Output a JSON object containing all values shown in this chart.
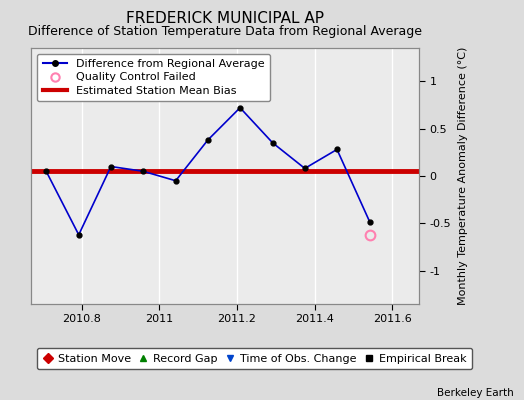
{
  "title": "FREDERICK MUNICIPAL AP",
  "subtitle": "Difference of Station Temperature Data from Regional Average",
  "ylabel_right": "Monthly Temperature Anomaly Difference (°C)",
  "credit": "Berkeley Earth",
  "xlim": [
    2010.67,
    2011.67
  ],
  "ylim": [
    -1.35,
    1.35
  ],
  "yticks": [
    -1,
    -0.5,
    0,
    0.5,
    1
  ],
  "xtick_vals": [
    2010.8,
    2011.0,
    2011.2,
    2011.4,
    2011.6
  ],
  "xtick_labels": [
    "2010.8",
    "2011",
    "2011.2",
    "2011.4",
    "2011.6"
  ],
  "background_color": "#dcdcdc",
  "plot_bg_color": "#ebebeb",
  "grid_color": "#ffffff",
  "main_line_color": "#0000cc",
  "main_marker_color": "#000000",
  "bias_line_color": "#cc0000",
  "bias_value": 0.05,
  "data_x": [
    2010.708,
    2010.792,
    2010.875,
    2010.958,
    2011.042,
    2011.125,
    2011.208,
    2011.292,
    2011.375,
    2011.458,
    2011.542
  ],
  "data_y": [
    0.05,
    -0.62,
    0.1,
    0.05,
    -0.05,
    0.38,
    0.72,
    0.35,
    0.08,
    0.28,
    -0.48
  ],
  "qc_failed_x": [
    2011.542
  ],
  "qc_failed_y": [
    -0.62
  ],
  "legend1_items": [
    {
      "label": "Difference from Regional Average",
      "color": "#0000cc",
      "marker": "o",
      "linestyle": "-"
    },
    {
      "label": "Quality Control Failed",
      "color": "#ff80b0",
      "marker": "o",
      "linestyle": "none"
    },
    {
      "label": "Estimated Station Mean Bias",
      "color": "#cc0000",
      "marker": null,
      "linestyle": "-"
    }
  ],
  "legend2_items": [
    {
      "label": "Station Move",
      "color": "#cc0000",
      "marker": "D"
    },
    {
      "label": "Record Gap",
      "color": "#008000",
      "marker": "^"
    },
    {
      "label": "Time of Obs. Change",
      "color": "#0044cc",
      "marker": "v"
    },
    {
      "label": "Empirical Break",
      "color": "#000000",
      "marker": "s"
    }
  ],
  "title_fontsize": 11,
  "subtitle_fontsize": 9,
  "tick_fontsize": 8,
  "legend_fontsize": 8,
  "credit_fontsize": 7.5
}
